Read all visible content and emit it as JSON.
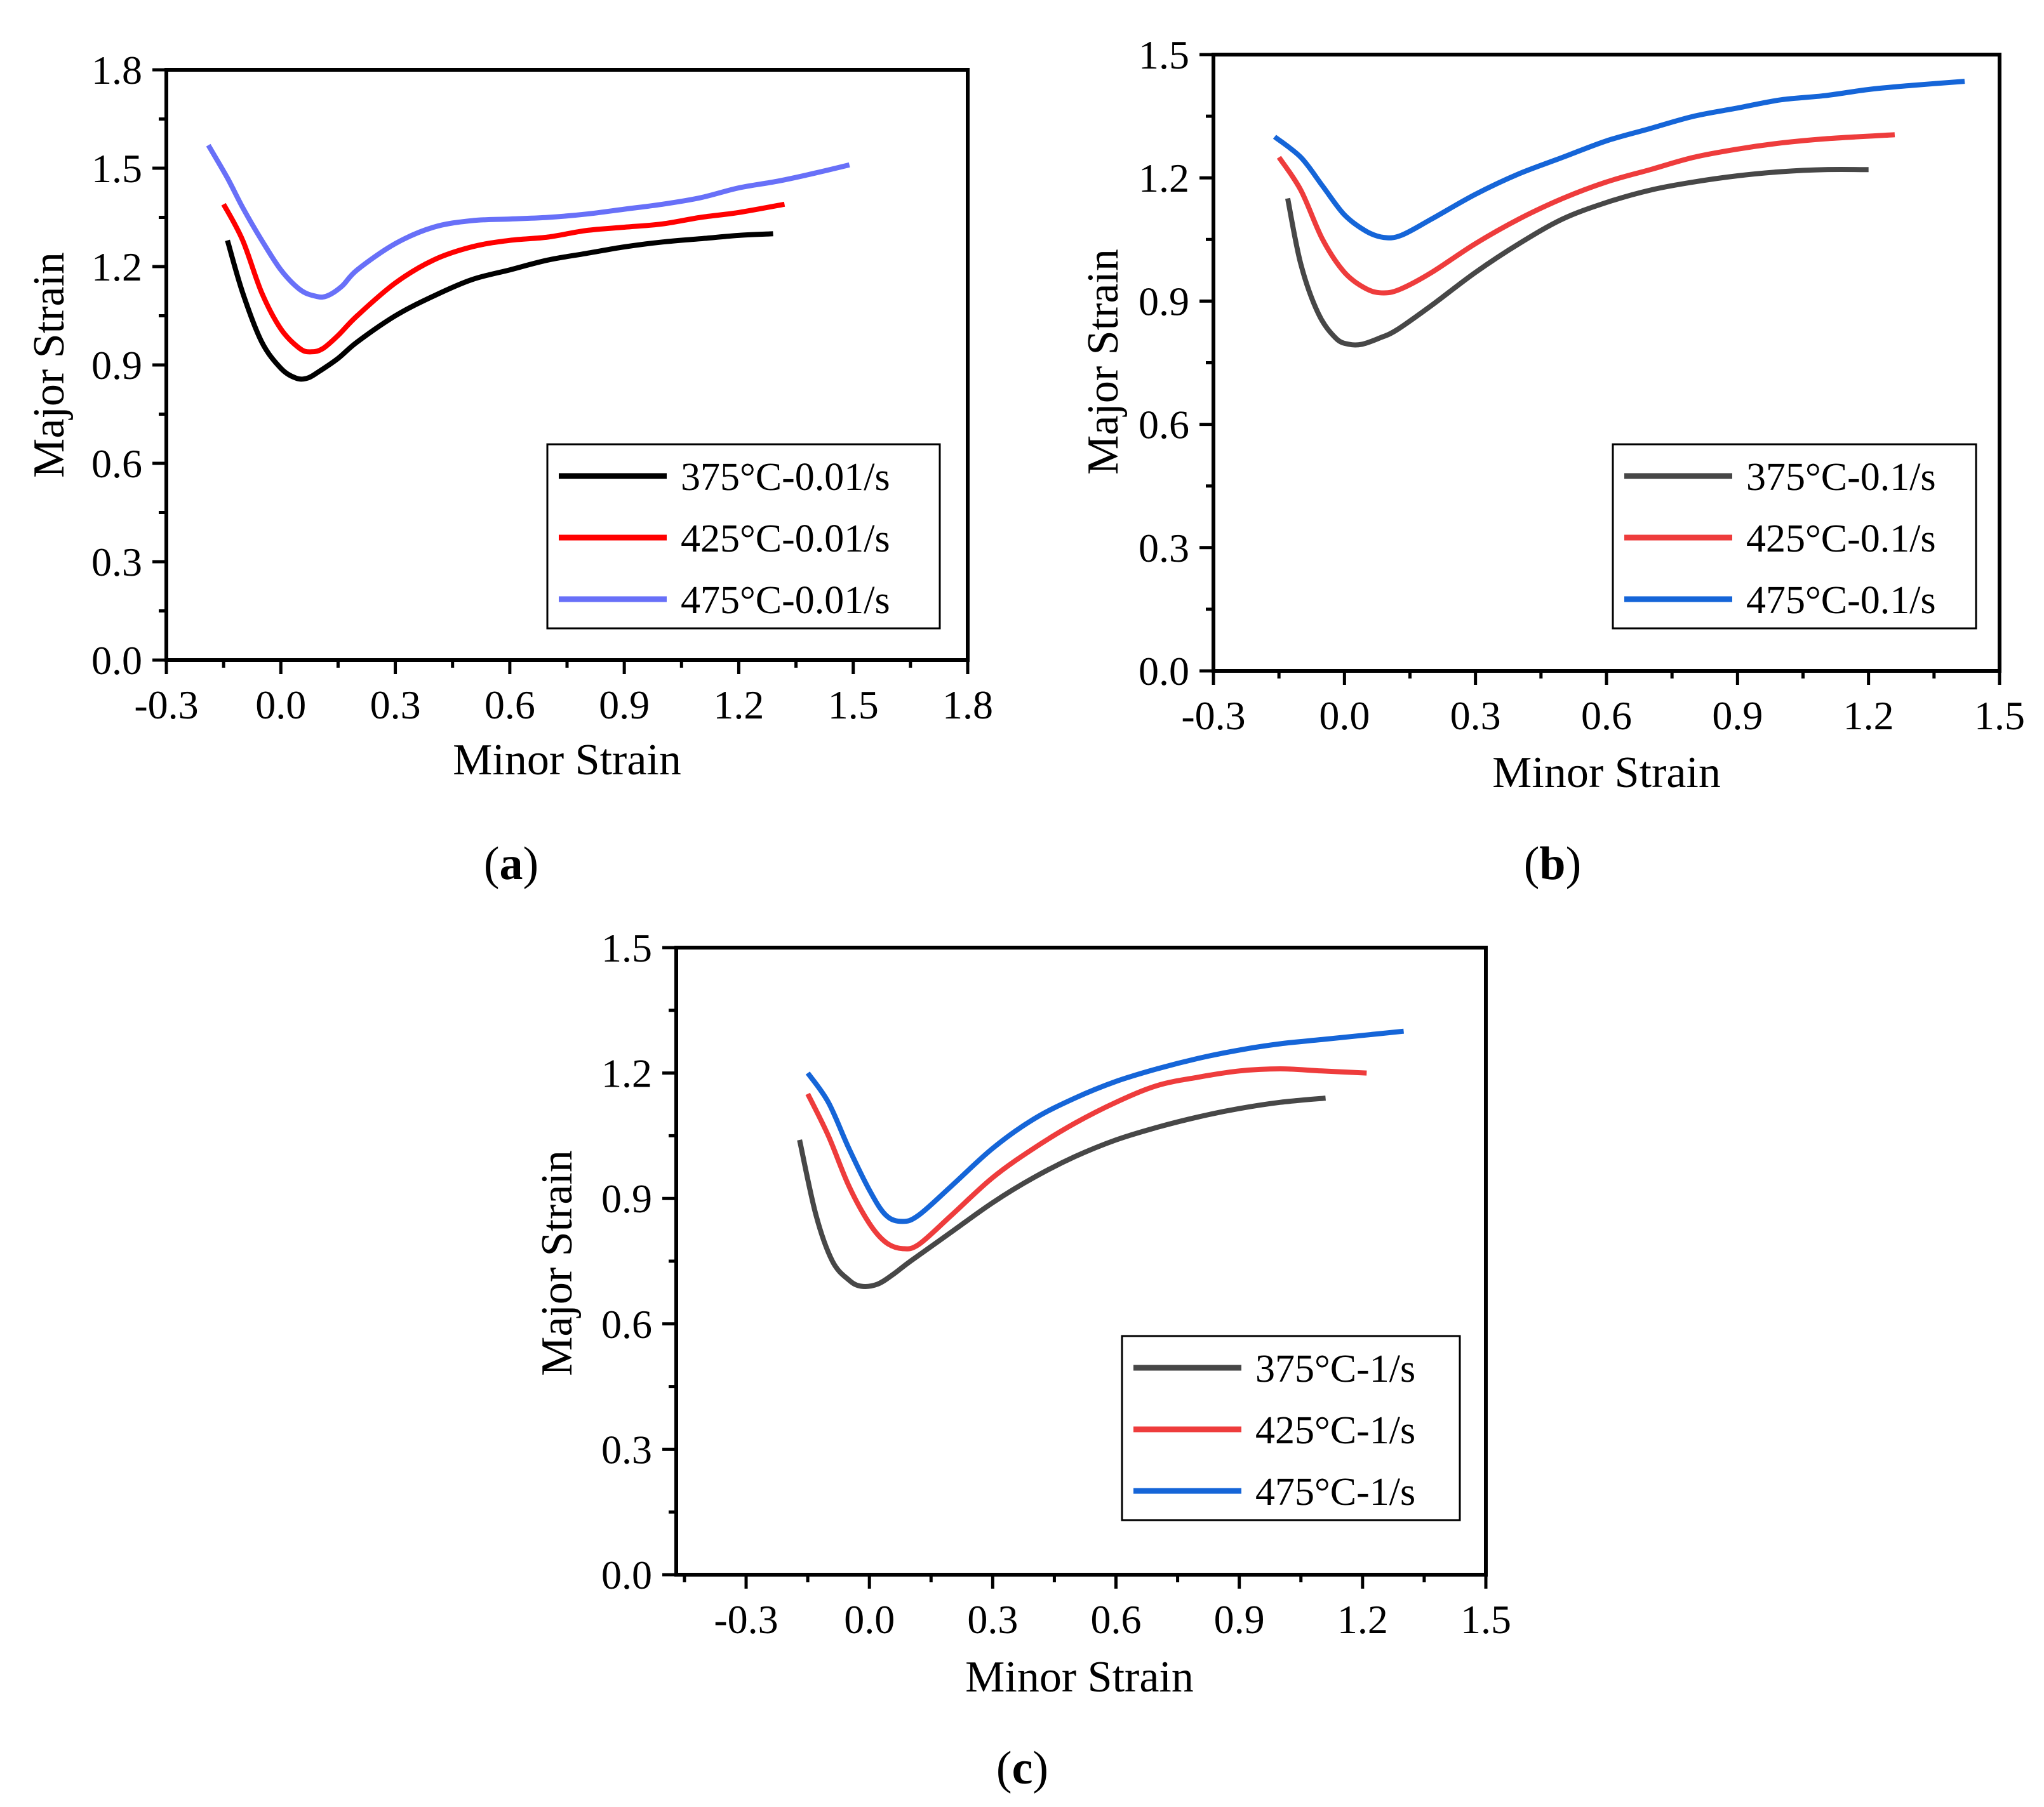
{
  "figure": {
    "panel_labels": [
      "a",
      "b",
      "c"
    ]
  },
  "chart_data": [
    {
      "type": "line",
      "panel": "a",
      "xlabel": "Minor Strain",
      "ylabel": "Major Strain",
      "xlim": [
        -0.3,
        1.8
      ],
      "ylim": [
        0.0,
        1.8
      ],
      "xticks": [
        -0.3,
        0.0,
        0.3,
        0.6,
        0.9,
        1.2,
        1.5,
        1.8
      ],
      "yticks": [
        0.0,
        0.3,
        0.6,
        0.9,
        1.2,
        1.5,
        1.8
      ],
      "xtick_labels": [
        "-0.3",
        "0.0",
        "0.3",
        "0.6",
        "0.9",
        "1.2",
        "1.5",
        "1.8"
      ],
      "ytick_labels": [
        "0.0",
        "0.3",
        "0.6",
        "0.9",
        "1.2",
        "1.5",
        "1.8"
      ],
      "legend_position": "bottom-right",
      "series": [
        {
          "name": "375°C-0.01/s",
          "color": "#000000",
          "x": [
            -0.14,
            -0.1,
            -0.05,
            0.0,
            0.04,
            0.07,
            0.1,
            0.15,
            0.2,
            0.3,
            0.4,
            0.5,
            0.6,
            0.7,
            0.8,
            0.9,
            1.0,
            1.1,
            1.2,
            1.29
          ],
          "y": [
            1.28,
            1.12,
            0.97,
            0.89,
            0.86,
            0.86,
            0.88,
            0.92,
            0.97,
            1.05,
            1.11,
            1.16,
            1.19,
            1.22,
            1.24,
            1.26,
            1.275,
            1.285,
            1.295,
            1.3
          ]
        },
        {
          "name": "425°C-0.01/s",
          "color": "#ff0000",
          "x": [
            -0.15,
            -0.1,
            -0.05,
            0.0,
            0.05,
            0.08,
            0.11,
            0.15,
            0.2,
            0.3,
            0.4,
            0.5,
            0.6,
            0.7,
            0.8,
            0.9,
            1.0,
            1.1,
            1.2,
            1.32
          ],
          "y": [
            1.39,
            1.28,
            1.12,
            1.01,
            0.95,
            0.94,
            0.95,
            0.99,
            1.05,
            1.15,
            1.22,
            1.26,
            1.28,
            1.29,
            1.31,
            1.32,
            1.33,
            1.35,
            1.365,
            1.39
          ]
        },
        {
          "name": "475°C-0.01/s",
          "color": "#6870f8",
          "x": [
            -0.19,
            -0.14,
            -0.1,
            -0.05,
            0.0,
            0.05,
            0.09,
            0.12,
            0.16,
            0.2,
            0.3,
            0.4,
            0.5,
            0.6,
            0.7,
            0.8,
            0.9,
            1.0,
            1.1,
            1.2,
            1.3,
            1.4,
            1.49
          ],
          "y": [
            1.57,
            1.47,
            1.38,
            1.28,
            1.19,
            1.13,
            1.11,
            1.11,
            1.14,
            1.19,
            1.27,
            1.32,
            1.34,
            1.345,
            1.35,
            1.36,
            1.375,
            1.39,
            1.41,
            1.44,
            1.46,
            1.485,
            1.51
          ]
        }
      ]
    },
    {
      "type": "line",
      "panel": "b",
      "xlabel": "Minor Strain",
      "ylabel": "Major Strain",
      "xlim": [
        -0.3,
        1.5
      ],
      "ylim": [
        0.0,
        1.5
      ],
      "xticks": [
        -0.3,
        0.0,
        0.3,
        0.6,
        0.9,
        1.2,
        1.5
      ],
      "yticks": [
        0.0,
        0.3,
        0.6,
        0.9,
        1.2,
        1.5
      ],
      "xtick_labels": [
        "-0.3",
        "0.0",
        "0.3",
        "0.6",
        "0.9",
        "1.2",
        "1.5"
      ],
      "ytick_labels": [
        "0.0",
        "0.3",
        "0.6",
        "0.9",
        "1.2",
        "1.5"
      ],
      "legend_position": "bottom-right",
      "series": [
        {
          "name": "375°C-0.1/s",
          "color": "#474747",
          "x": [
            -0.13,
            -0.1,
            -0.06,
            -0.02,
            0.01,
            0.04,
            0.08,
            0.12,
            0.2,
            0.3,
            0.4,
            0.5,
            0.6,
            0.7,
            0.8,
            0.9,
            1.0,
            1.1,
            1.2
          ],
          "y": [
            1.15,
            0.99,
            0.87,
            0.81,
            0.795,
            0.795,
            0.81,
            0.83,
            0.89,
            0.97,
            1.04,
            1.1,
            1.14,
            1.17,
            1.19,
            1.205,
            1.215,
            1.22,
            1.22
          ]
        },
        {
          "name": "425°C-0.1/s",
          "color": "#ee3c3c",
          "x": [
            -0.15,
            -0.1,
            -0.05,
            0.0,
            0.05,
            0.09,
            0.13,
            0.2,
            0.3,
            0.4,
            0.5,
            0.6,
            0.7,
            0.8,
            0.9,
            1.0,
            1.1,
            1.26
          ],
          "y": [
            1.25,
            1.17,
            1.05,
            0.97,
            0.93,
            0.92,
            0.93,
            0.97,
            1.04,
            1.1,
            1.15,
            1.19,
            1.22,
            1.25,
            1.27,
            1.285,
            1.295,
            1.305
          ]
        },
        {
          "name": "475°C-0.1/s",
          "color": "#1565d8",
          "x": [
            -0.16,
            -0.1,
            -0.05,
            0.0,
            0.05,
            0.09,
            0.13,
            0.2,
            0.3,
            0.4,
            0.5,
            0.6,
            0.7,
            0.8,
            0.9,
            1.0,
            1.1,
            1.2,
            1.3,
            1.42
          ],
          "y": [
            1.3,
            1.25,
            1.18,
            1.11,
            1.07,
            1.055,
            1.06,
            1.1,
            1.16,
            1.21,
            1.25,
            1.29,
            1.32,
            1.35,
            1.37,
            1.39,
            1.4,
            1.415,
            1.425,
            1.435
          ]
        }
      ]
    },
    {
      "type": "line",
      "panel": "c",
      "xlabel": "Minor Strain",
      "ylabel": "Major Strain",
      "xlim": [
        -0.47,
        1.5
      ],
      "ylim": [
        0.0,
        1.5
      ],
      "xticks": [
        -0.3,
        0.0,
        0.3,
        0.6,
        0.9,
        1.2,
        1.5
      ],
      "yticks": [
        0.0,
        0.3,
        0.6,
        0.9,
        1.2,
        1.5
      ],
      "xtick_labels": [
        "-0.3",
        "0.0",
        "0.3",
        "0.6",
        "0.9",
        "1.2",
        "1.5"
      ],
      "ytick_labels": [
        "0.0",
        "0.3",
        "0.6",
        "0.9",
        "1.2",
        "1.5"
      ],
      "legend_position": "bottom-right",
      "series": [
        {
          "name": "375°C-1/s",
          "color": "#474747",
          "x": [
            -0.17,
            -0.13,
            -0.09,
            -0.05,
            -0.02,
            0.02,
            0.06,
            0.1,
            0.2,
            0.3,
            0.4,
            0.5,
            0.6,
            0.7,
            0.8,
            0.9,
            1.0,
            1.11
          ],
          "y": [
            1.04,
            0.86,
            0.75,
            0.705,
            0.69,
            0.695,
            0.72,
            0.75,
            0.82,
            0.89,
            0.95,
            1.0,
            1.04,
            1.07,
            1.095,
            1.115,
            1.13,
            1.14
          ]
        },
        {
          "name": "425°C-1/s",
          "color": "#ee3c3c",
          "x": [
            -0.15,
            -0.1,
            -0.05,
            0.0,
            0.04,
            0.08,
            0.12,
            0.2,
            0.3,
            0.4,
            0.5,
            0.6,
            0.7,
            0.8,
            0.9,
            1.0,
            1.1,
            1.21
          ],
          "y": [
            1.15,
            1.05,
            0.93,
            0.84,
            0.795,
            0.78,
            0.79,
            0.86,
            0.95,
            1.02,
            1.08,
            1.13,
            1.17,
            1.19,
            1.205,
            1.21,
            1.205,
            1.2
          ]
        },
        {
          "name": "475°C-1/s",
          "color": "#1565d8",
          "x": [
            -0.15,
            -0.1,
            -0.05,
            0.0,
            0.04,
            0.08,
            0.12,
            0.2,
            0.3,
            0.4,
            0.5,
            0.6,
            0.7,
            0.8,
            0.9,
            1.0,
            1.1,
            1.2,
            1.3
          ],
          "y": [
            1.2,
            1.13,
            1.02,
            0.92,
            0.86,
            0.845,
            0.86,
            0.93,
            1.02,
            1.09,
            1.14,
            1.18,
            1.21,
            1.235,
            1.255,
            1.27,
            1.28,
            1.29,
            1.3
          ]
        }
      ]
    }
  ]
}
